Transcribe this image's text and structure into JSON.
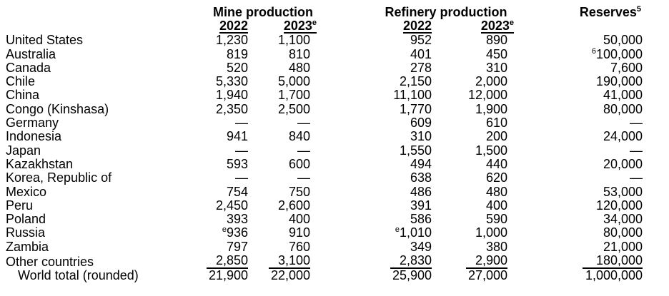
{
  "table": {
    "group_headers": {
      "mine": "Mine production",
      "refinery": "Refinery production",
      "reserves": "Reserves",
      "reserves_sup": "5"
    },
    "year_headers": [
      {
        "label": "2022"
      },
      {
        "label": "2023",
        "sup": "e"
      },
      {
        "label": "2022"
      },
      {
        "label": "2023",
        "sup": "e"
      }
    ],
    "columns": [
      "country",
      "mine_2022",
      "mine_2023",
      "refinery_2022",
      "refinery_2023",
      "reserves"
    ],
    "rows": [
      {
        "country": "United States",
        "cells": [
          {
            "v": "1,230"
          },
          {
            "v": "1,100"
          },
          {
            "v": "952"
          },
          {
            "v": "890"
          },
          {
            "v": "50,000"
          }
        ]
      },
      {
        "country": "Australia",
        "cells": [
          {
            "v": "819"
          },
          {
            "v": "810"
          },
          {
            "v": "401"
          },
          {
            "v": "450"
          },
          {
            "s": "6",
            "v": "100,000"
          }
        ]
      },
      {
        "country": "Canada",
        "cells": [
          {
            "v": "520"
          },
          {
            "v": "480"
          },
          {
            "v": "278"
          },
          {
            "v": "310"
          },
          {
            "v": "7,600"
          }
        ]
      },
      {
        "country": "Chile",
        "cells": [
          {
            "v": "5,330"
          },
          {
            "v": "5,000"
          },
          {
            "v": "2,150"
          },
          {
            "v": "2,000"
          },
          {
            "v": "190,000"
          }
        ]
      },
      {
        "country": "China",
        "cells": [
          {
            "v": "1,940"
          },
          {
            "v": "1,700"
          },
          {
            "v": "11,100"
          },
          {
            "v": "12,000"
          },
          {
            "v": "41,000"
          }
        ]
      },
      {
        "country": "Congo (Kinshasa)",
        "cells": [
          {
            "v": "2,350"
          },
          {
            "v": "2,500"
          },
          {
            "v": "1,770"
          },
          {
            "v": "1,900"
          },
          {
            "v": "80,000"
          }
        ]
      },
      {
        "country": "Germany",
        "cells": [
          {
            "v": "—"
          },
          {
            "v": "—"
          },
          {
            "v": "609"
          },
          {
            "v": "610"
          },
          {
            "v": "—"
          }
        ]
      },
      {
        "country": "Indonesia",
        "cells": [
          {
            "v": "941"
          },
          {
            "v": "840"
          },
          {
            "v": "310"
          },
          {
            "v": "200"
          },
          {
            "v": "24,000"
          }
        ]
      },
      {
        "country": "Japan",
        "cells": [
          {
            "v": "—"
          },
          {
            "v": "—"
          },
          {
            "v": "1,550"
          },
          {
            "v": "1,500"
          },
          {
            "v": "—"
          }
        ]
      },
      {
        "country": "Kazakhstan",
        "cells": [
          {
            "v": "593"
          },
          {
            "v": "600"
          },
          {
            "v": "494"
          },
          {
            "v": "440"
          },
          {
            "v": "20,000"
          }
        ]
      },
      {
        "country": "Korea, Republic of",
        "cells": [
          {
            "v": "—"
          },
          {
            "v": "—"
          },
          {
            "v": "638"
          },
          {
            "v": "620"
          },
          {
            "v": "—"
          }
        ]
      },
      {
        "country": "Mexico",
        "cells": [
          {
            "v": "754"
          },
          {
            "v": "750"
          },
          {
            "v": "486"
          },
          {
            "v": "480"
          },
          {
            "v": "53,000"
          }
        ]
      },
      {
        "country": "Peru",
        "cells": [
          {
            "v": "2,450"
          },
          {
            "v": "2,600"
          },
          {
            "v": "391"
          },
          {
            "v": "400"
          },
          {
            "v": "120,000"
          }
        ]
      },
      {
        "country": "Poland",
        "cells": [
          {
            "v": "393"
          },
          {
            "v": "400"
          },
          {
            "v": "586"
          },
          {
            "v": "590"
          },
          {
            "v": "34,000"
          }
        ]
      },
      {
        "country": "Russia",
        "cells": [
          {
            "s": "e",
            "v": "936"
          },
          {
            "v": "910"
          },
          {
            "s": "e",
            "v": "1,010"
          },
          {
            "v": "1,000"
          },
          {
            "v": "80,000"
          }
        ]
      },
      {
        "country": "Zambia",
        "cells": [
          {
            "v": "797"
          },
          {
            "v": "760"
          },
          {
            "v": "349"
          },
          {
            "v": "380"
          },
          {
            "v": "21,000"
          }
        ]
      },
      {
        "country": "Other countries",
        "underline_values": true,
        "cells": [
          {
            "v": "2,850"
          },
          {
            "v": "3,100"
          },
          {
            "v": "2,830"
          },
          {
            "v": "2,900"
          },
          {
            "v": "180,000"
          }
        ]
      },
      {
        "country": "World total (rounded)",
        "indent": true,
        "cells": [
          {
            "v": "21,900"
          },
          {
            "v": "22,000"
          },
          {
            "v": "25,900"
          },
          {
            "v": "27,000"
          },
          {
            "v": "1,000,000"
          }
        ]
      }
    ]
  }
}
